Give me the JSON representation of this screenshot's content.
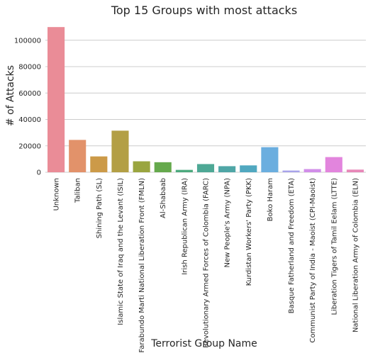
{
  "chart_data": {
    "type": "bar",
    "title": "Top 15 Groups with most attacks",
    "xlabel": "Terrorist Group Name",
    "ylabel": "# of Attacks",
    "ylim": [
      0,
      116000
    ],
    "yticks": [
      0,
      20000,
      40000,
      60000,
      80000,
      100000
    ],
    "grid": "horizontal",
    "categories": [
      "Unknown",
      "Taliban",
      "Shining Path (SL)",
      "Islamic State of Iraq and the Levant (ISIL)",
      "Farabundo Marti National Liberation Front (FMLN)",
      "Al-Shabaab",
      "Irish Republican Army (IRA)",
      "Revolutionary Armed Forces of Colombia (FARC)",
      "New People's Army (NPA)",
      "Kurdistan Workers' Party (PKK)",
      "Boko Haram",
      "Basque Fatherland and Freedom (ETA)",
      "Communist Party of India - Maoist (CPI-Maoist)",
      "Liberation Tigers of Tamil Eelam (LTTE)",
      "National Liberation Army of Colombia (ELN)"
    ],
    "values": [
      110000,
      24500,
      12000,
      31500,
      8300,
      7600,
      1800,
      6200,
      4600,
      5200,
      19000,
      1300,
      2400,
      11500,
      2000
    ],
    "colors": [
      "#ea8c97",
      "#e2926a",
      "#cc9a48",
      "#b39f45",
      "#9aa53f",
      "#65a94c",
      "#4caa7e",
      "#4ea895",
      "#4fa6a6",
      "#51a8c0",
      "#6baedf",
      "#a8a3ea",
      "#d18ee9",
      "#e285dd",
      "#e788b8"
    ]
  }
}
